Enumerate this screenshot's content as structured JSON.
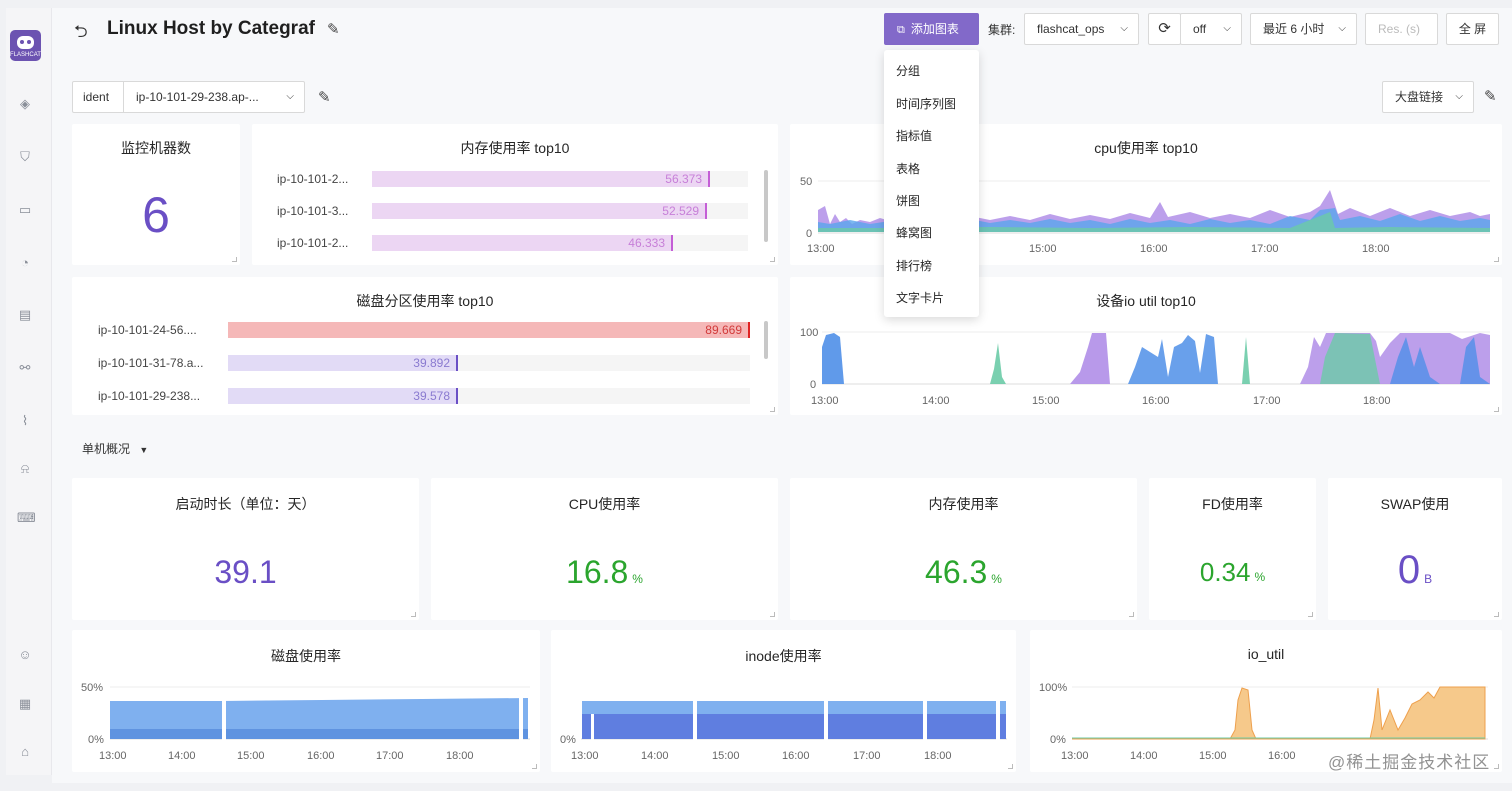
{
  "header": {
    "title": "Linux Host by Categraf",
    "add_chart": "添加图表",
    "cluster_label": "集群:",
    "cluster_value": "flashcat_ops",
    "refresh_value": "off",
    "time_range": "最近 6 小时",
    "res_placeholder": "Res. (s)",
    "fullscreen": "全 屏"
  },
  "variables": {
    "ident_label": "ident",
    "ident_value": "ip-10-101-29-238.ap-...",
    "link_label": "大盘链接"
  },
  "logo_text": "FLASHCAT",
  "add_menu": [
    "分组",
    "时间序列图",
    "指标值",
    "表格",
    "饼图",
    "蜂窝图",
    "排行榜",
    "文字卡片"
  ],
  "panels": {
    "host_count": {
      "title": "监控机器数",
      "value": "6"
    },
    "mem_top10": {
      "title": "内存使用率 top10",
      "rows": [
        {
          "label": "ip-10-101-2...",
          "value": "56.373",
          "fraction": 0.9
        },
        {
          "label": "ip-10-101-3...",
          "value": "52.529",
          "fraction": 0.89
        },
        {
          "label": "ip-10-101-2...",
          "value": "46.333",
          "fraction": 0.8
        }
      ]
    },
    "cpu_top10": {
      "title": "cpu使用率 top10",
      "y_ticks": [
        "50",
        "0"
      ],
      "x_ticks": [
        "13:00",
        "15:00",
        "16:00",
        "17:00",
        "18:00"
      ]
    },
    "disk_top10": {
      "title": "磁盘分区使用率 top10",
      "rows": [
        {
          "label": "ip-10-101-24-56....",
          "value": "89.669",
          "fraction": 1.0
        },
        {
          "label": "ip-10-101-31-78.a...",
          "value": "39.892",
          "fraction": 0.44
        },
        {
          "label": "ip-10-101-29-238...",
          "value": "39.578",
          "fraction": 0.44
        }
      ]
    },
    "io_top10": {
      "title": "设备io util top10",
      "y_ticks": [
        "100",
        "0"
      ],
      "x_ticks": [
        "13:00",
        "14:00",
        "15:00",
        "16:00",
        "17:00",
        "18:00"
      ]
    },
    "section_title": "单机概况",
    "uptime": {
      "title": "启动时长（单位：天）",
      "value": "39.1",
      "unit": ""
    },
    "cpu": {
      "title": "CPU使用率",
      "value": "16.8",
      "unit": "%"
    },
    "mem": {
      "title": "内存使用率",
      "value": "46.3",
      "unit": "%"
    },
    "fd": {
      "title": "FD使用率",
      "value": "0.34",
      "unit": "%"
    },
    "swap": {
      "title": "SWAP使用",
      "value": "0",
      "unit": "B"
    },
    "disk_usage": {
      "title": "磁盘使用率",
      "y_ticks": [
        "50%",
        "0%"
      ],
      "x_ticks": [
        "13:00",
        "14:00",
        "15:00",
        "16:00",
        "17:00",
        "18:00"
      ]
    },
    "inode_usage": {
      "title": "inode使用率",
      "y_ticks": [
        "0%"
      ],
      "x_ticks": [
        "13:00",
        "14:00",
        "15:00",
        "16:00",
        "17:00",
        "18:00"
      ]
    },
    "io_util": {
      "title": "io_util",
      "y_ticks": [
        "100%",
        "0%"
      ],
      "x_ticks": [
        "13:00",
        "14:00",
        "15:00",
        "16:00"
      ]
    }
  },
  "watermark": "@稀土掘金技术社区",
  "colors": {
    "accent": "#8269c9",
    "purple_value": "#6a4fc5",
    "green_value": "#2ba52e",
    "red_bar": "#f5b5b5",
    "purple_bar": "#ead5f2"
  },
  "icons": [
    "flashcat-logo",
    "back-icon",
    "edit-icon",
    "refresh-icon",
    "chevron-down-icon",
    "add-chart-icon",
    "sidebar-dashboard-icon",
    "sidebar-shield-icon",
    "sidebar-monitor-icon",
    "sidebar-gauge-icon",
    "sidebar-calendar-icon",
    "sidebar-link-icon",
    "sidebar-chart-icon",
    "sidebar-alarm-icon",
    "sidebar-terminal-icon",
    "sidebar-user-icon",
    "sidebar-apps-icon",
    "sidebar-robot-icon"
  ]
}
